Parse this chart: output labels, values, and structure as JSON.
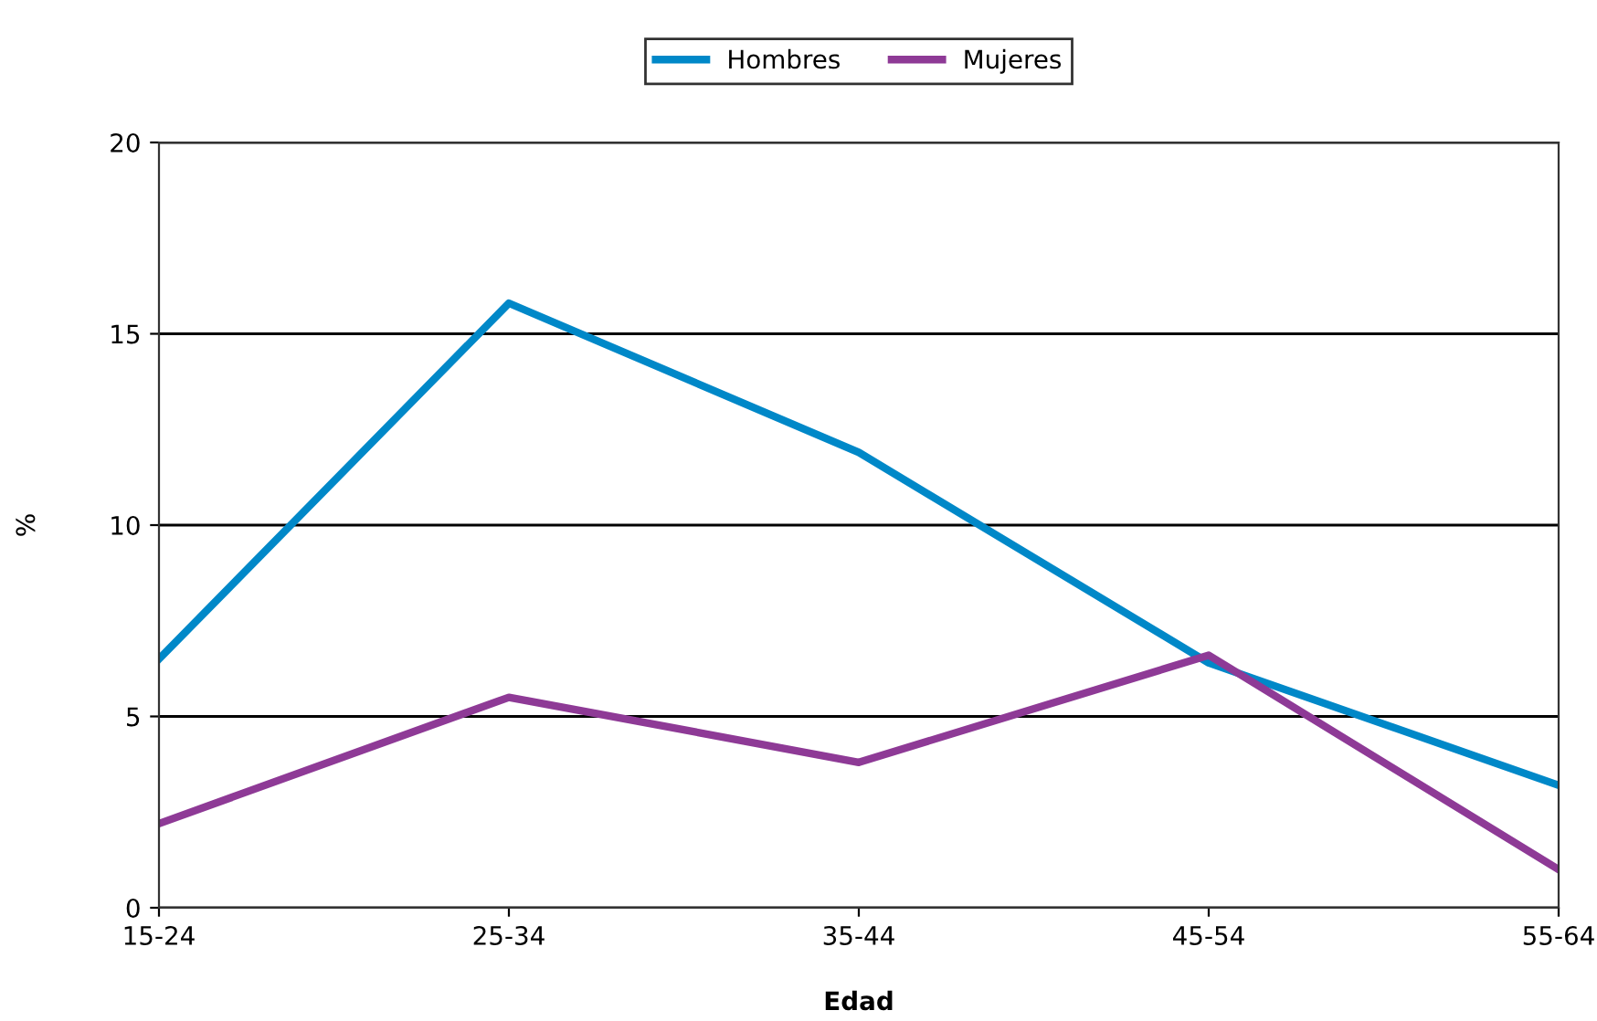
{
  "chart_data": {
    "type": "line",
    "xlabel": "Edad",
    "ylabel": "%",
    "categories": [
      "15-24",
      "25-34",
      "35-44",
      "45-54",
      "55-64"
    ],
    "series": [
      {
        "name": "Hombres",
        "color": "#0088c8",
        "values": [
          6.5,
          15.8,
          11.9,
          6.4,
          3.2
        ]
      },
      {
        "name": "Mujeres",
        "color": "#8e3a96",
        "values": [
          2.2,
          5.5,
          3.8,
          6.6,
          1.0
        ]
      }
    ],
    "ylim": [
      0,
      20
    ],
    "yticks": [
      0,
      5,
      10,
      15,
      20
    ],
    "grid": "y",
    "legend": "top",
    "line_style": "solid"
  }
}
